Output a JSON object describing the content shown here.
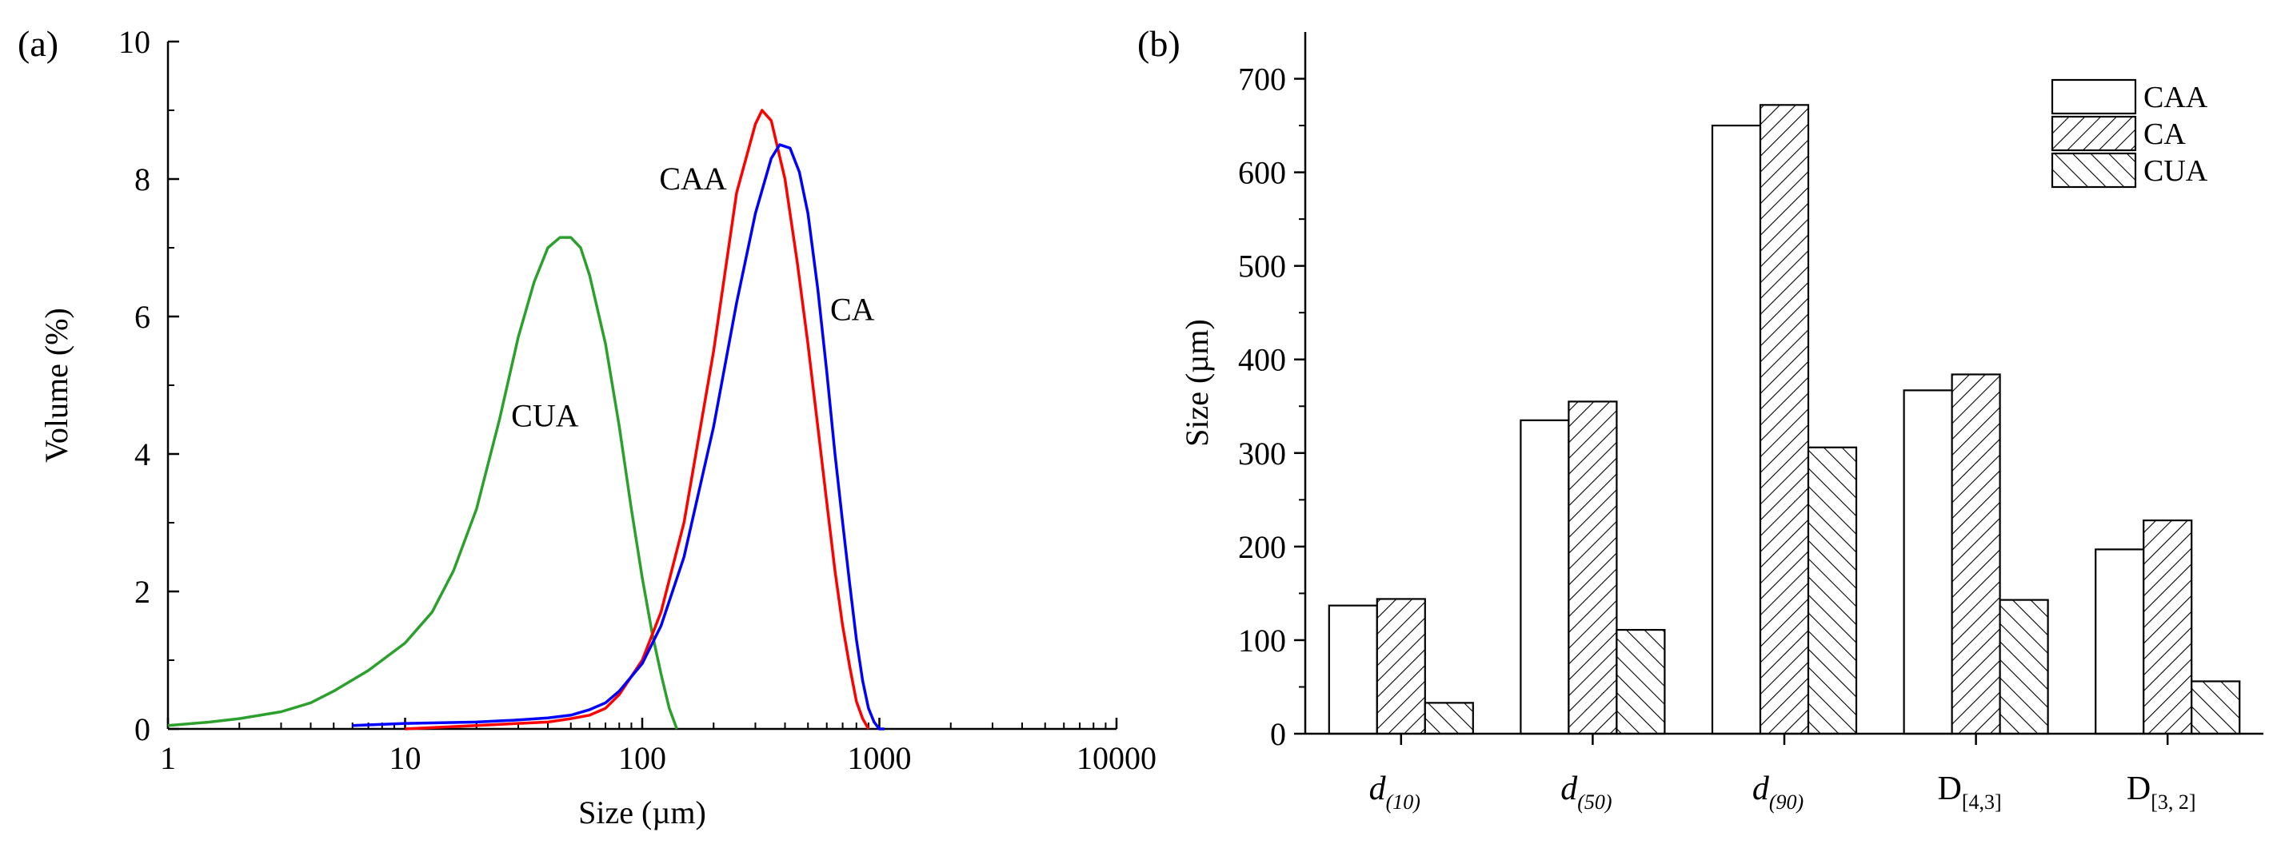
{
  "chart_data": [
    {
      "type": "line",
      "panel_label": "(a)",
      "xlabel": "Size (µm)",
      "ylabel": "Volume (%)",
      "xscale": "log",
      "xlim": [
        1,
        10000
      ],
      "ylim": [
        0,
        10
      ],
      "xticks": [
        "1",
        "10",
        "100",
        "1000",
        "10000"
      ],
      "yticks": [
        "0",
        "2",
        "4",
        "6",
        "8",
        "10"
      ],
      "grid": false,
      "series": [
        {
          "name": "CUA",
          "color": "#2ca02c",
          "x": [
            1,
            1.5,
            2,
            3,
            4,
            5,
            7,
            10,
            13,
            16,
            20,
            25,
            30,
            35,
            40,
            45,
            50,
            55,
            60,
            70,
            80,
            90,
            100,
            110,
            120,
            130,
            140
          ],
          "y": [
            0.05,
            0.1,
            0.15,
            0.25,
            0.38,
            0.55,
            0.85,
            1.25,
            1.7,
            2.3,
            3.2,
            4.5,
            5.7,
            6.5,
            7.0,
            7.15,
            7.15,
            7.0,
            6.6,
            5.6,
            4.4,
            3.2,
            2.2,
            1.4,
            0.8,
            0.3,
            0.0
          ]
        },
        {
          "name": "CAA",
          "color": "#ff0000",
          "x": [
            10,
            20,
            30,
            40,
            50,
            60,
            70,
            80,
            100,
            120,
            150,
            200,
            250,
            300,
            320,
            350,
            400,
            450,
            500,
            550,
            600,
            650,
            700,
            750,
            800,
            850,
            900
          ],
          "y": [
            0.0,
            0.05,
            0.08,
            0.1,
            0.15,
            0.2,
            0.3,
            0.5,
            1.0,
            1.7,
            3.0,
            5.5,
            7.8,
            8.8,
            9.0,
            8.85,
            8.0,
            6.8,
            5.6,
            4.4,
            3.3,
            2.3,
            1.5,
            0.9,
            0.4,
            0.15,
            0.0
          ]
        },
        {
          "name": "CA",
          "color": "#0000ff",
          "x": [
            6,
            10,
            20,
            30,
            40,
            50,
            60,
            70,
            80,
            100,
            120,
            150,
            200,
            250,
            300,
            350,
            380,
            420,
            460,
            500,
            550,
            600,
            650,
            700,
            750,
            800,
            850,
            900,
            950,
            1000,
            1050
          ],
          "y": [
            0.05,
            0.08,
            0.1,
            0.13,
            0.16,
            0.2,
            0.28,
            0.38,
            0.55,
            0.95,
            1.5,
            2.5,
            4.4,
            6.2,
            7.5,
            8.3,
            8.5,
            8.45,
            8.1,
            7.5,
            6.4,
            5.2,
            4.0,
            3.0,
            2.1,
            1.3,
            0.7,
            0.3,
            0.1,
            0.0,
            0.0
          ]
        }
      ],
      "annotations": [
        {
          "text": "CUA",
          "x": 28,
          "y": 4.4
        },
        {
          "text": "CAA",
          "x": 118,
          "y": 7.85
        },
        {
          "text": "CA",
          "x": 620,
          "y": 5.95
        }
      ]
    },
    {
      "type": "bar",
      "panel_label": "(b)",
      "ylabel": "Size (µm)",
      "ylim": [
        0,
        750
      ],
      "yticks": [
        "0",
        "100",
        "200",
        "300",
        "400",
        "500",
        "600",
        "700"
      ],
      "grid": false,
      "legend_position": "top-right",
      "categories": [
        {
          "main": "d",
          "sub": "(10)",
          "italic": true
        },
        {
          "main": "d",
          "sub": "(50)",
          "italic": true
        },
        {
          "main": "d",
          "sub": "(90)",
          "italic": true
        },
        {
          "main": "D",
          "sub": "[4,3]",
          "italic": false
        },
        {
          "main": "D",
          "sub": "[3, 2]",
          "italic": false
        }
      ],
      "series": [
        {
          "name": "CAA",
          "pattern": "none",
          "values": [
            137,
            335,
            650,
            367,
            197
          ]
        },
        {
          "name": "CA",
          "pattern": "forward-hatch",
          "values": [
            144,
            355,
            672,
            384,
            228
          ]
        },
        {
          "name": "CUA",
          "pattern": "back-hatch",
          "values": [
            33,
            111,
            306,
            143,
            56
          ]
        }
      ]
    }
  ]
}
